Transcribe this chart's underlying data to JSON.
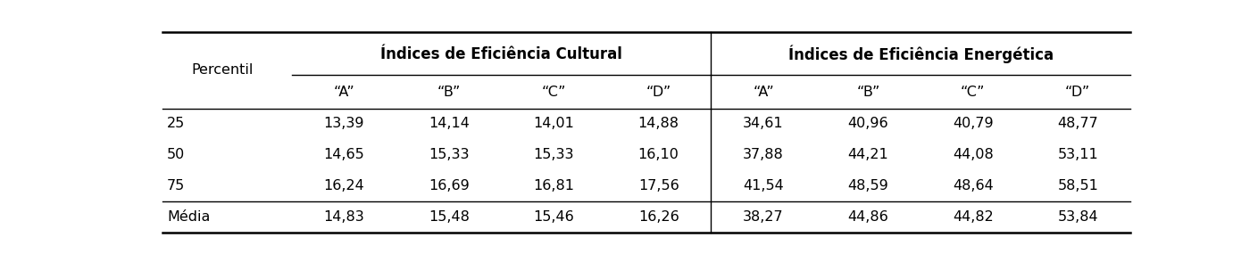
{
  "group1_label": "Índices de Eficiência Cultural",
  "group2_label": "Índices de Eficiência Energética",
  "percentil_label": "Percentil",
  "sub_labels": [
    "“A”",
    "“B”",
    "“C”",
    "“D”",
    "“A”",
    "“B”",
    "“C”",
    "“D”"
  ],
  "rows": [
    [
      "25",
      "13,39",
      "14,14",
      "14,01",
      "14,88",
      "34,61",
      "40,96",
      "40,79",
      "48,77"
    ],
    [
      "50",
      "14,65",
      "15,33",
      "15,33",
      "16,10",
      "37,88",
      "44,21",
      "44,08",
      "53,11"
    ],
    [
      "75",
      "16,24",
      "16,69",
      "16,81",
      "17,56",
      "41,54",
      "48,59",
      "48,64",
      "58,51"
    ],
    [
      "Média",
      "14,83",
      "15,48",
      "15,46",
      "16,26",
      "38,27",
      "44,86",
      "44,82",
      "53,84"
    ]
  ],
  "bg_color": "#ffffff",
  "text_color": "#000000",
  "line_color": "#000000",
  "font_size": 11.5,
  "bold_font_size": 12
}
